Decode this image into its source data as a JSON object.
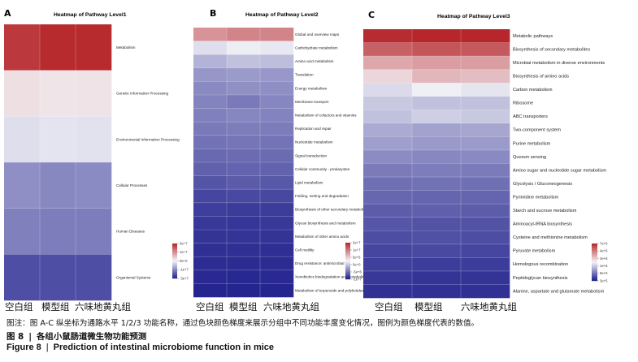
{
  "chart_data": [
    {
      "type": "heatmap",
      "panel": "A",
      "title": "Heatmap of Pathway Level1",
      "columns": [
        "空白组",
        "模型组",
        "六味地黄丸组"
      ],
      "rows": [
        "Metabolism",
        "Genetic Information Processing",
        "Environmental Information Processing",
        "Cellular Processes",
        "Human Diseases",
        "Organismal Systems"
      ],
      "values": [
        [
          27000000.0,
          29000000.0,
          29000000.0
        ],
        [
          3000000.0,
          2200000.0,
          2400000.0
        ],
        [
          -3000000.0,
          -2200000.0,
          -2500000.0
        ],
        [
          -14000000.0,
          -15000000.0,
          -14500000.0
        ],
        [
          -16000000.0,
          -16500000.0,
          -16500000.0
        ],
        [
          -23000000.0,
          -23000000.0,
          -23000000.0
        ]
      ],
      "legend": {
        "ticks": [
          "3e+7",
          "1e+7",
          "0e+0",
          "-1e+7",
          "-3e+7"
        ],
        "tick_values": [
          30000000.0,
          10000000.0,
          0,
          -10000000.0,
          -30000000.0
        ],
        "min": -30000000.0,
        "max": 30000000.0,
        "colors": [
          "#1b1b8a",
          "#f4f4f8",
          "#b52428"
        ]
      }
    },
    {
      "type": "heatmap",
      "panel": "B",
      "title": "Heatmap of Pathway Level2",
      "columns": [
        "空白组",
        "模型组",
        "六味地黄丸组"
      ],
      "rows": [
        "Global and overview maps",
        "Carbohydrate metabolism",
        "Amino acid metabolism",
        "Translation",
        "Energy metabolism",
        "Membrane transport",
        "Metabolism of cofactors and vitamins",
        "Replication and repair",
        "Nucleotide metabolism",
        "Signal transduction",
        "Cellular community - prokaryotes",
        "Lipid metabolism",
        "Folding, sorting and degradation",
        "Biosynthesis of other secondary metabolites",
        "Glycan biosynthesis and metabolism",
        "Metabolism of other amino acids",
        "Cell motility",
        "Drug resistance: antimicrobial",
        "Xenobiotics biodegradation and metabolism",
        "Metabolism of terpenoids and polyketides"
      ],
      "values": [
        [
          12000000.0,
          13000000.0,
          13000000.0
        ],
        [
          3500000.0,
          4500000.0,
          4200000.0
        ],
        [
          500000.0,
          1500000.0,
          1200000.0
        ],
        [
          -1500000.0,
          -1200000.0,
          -1400000.0
        ],
        [
          -2300000.0,
          -1900000.0,
          -2000000.0
        ],
        [
          -2800000.0,
          -3400000.0,
          -2600000.0
        ],
        [
          -3000000.0,
          -2600000.0,
          -2800000.0
        ],
        [
          -3400000.0,
          -3200000.0,
          -3300000.0
        ],
        [
          -4000000.0,
          -3800000.0,
          -3900000.0
        ],
        [
          -4600000.0,
          -4500000.0,
          -4500000.0
        ],
        [
          -5200000.0,
          -5000000.0,
          -5100000.0
        ],
        [
          -6000000.0,
          -5600000.0,
          -5800000.0
        ],
        [
          -7000000.0,
          -6800000.0,
          -6900000.0
        ],
        [
          -7600000.0,
          -7800000.0,
          -7700000.0
        ],
        [
          -8000000.0,
          -8100000.0,
          -8000000.0
        ],
        [
          -8300000.0,
          -8300000.0,
          -8300000.0
        ],
        [
          -8600000.0,
          -8600000.0,
          -8700000.0
        ],
        [
          -8800000.0,
          -8900000.0,
          -8900000.0
        ],
        [
          -9000000.0,
          -9100000.0,
          -9000000.0
        ],
        [
          -9300000.0,
          -9300000.0,
          -9300000.0
        ]
      ],
      "legend": {
        "ticks": [
          "2e+7",
          "1e+7",
          "5e+6",
          "0e+0",
          "-5e+6",
          "-1e+7"
        ],
        "tick_values": [
          20000000.0,
          10000000.0,
          5000000.0,
          0,
          -5000000.0,
          -10000000.0
        ],
        "min": -10000000.0,
        "max": 20000000.0,
        "colors": [
          "#1b1b8a",
          "#f4f4f8",
          "#b52428"
        ]
      }
    },
    {
      "type": "heatmap",
      "panel": "C",
      "title": "Heatmap of Pathway Level3",
      "columns": [
        "空白组",
        "模型组",
        "六味地黄丸组"
      ],
      "rows": [
        "Metabolic pathways",
        "Biosynthesis of secondary metabolites",
        "Microbial metabolism in diverse environments",
        "Biosynthesis of amino acids",
        "Carbon metabolism",
        "Ribosome",
        "ABC transporters",
        "Two-component system",
        "Purine metabolism",
        "Quorum sensing",
        "Amino sugar and nucleotide sugar metabolism",
        "Glycolysis / Gluconeogenesis",
        "Pyrimidine metabolism",
        "Starch and sucrose metabolism",
        "Aminoacyl-tRNA biosynthesis",
        "Cysteine and methionine metabolism",
        "Pyruvate metabolism",
        "Homologous recombination",
        "Peptidoglycan biosynthesis",
        "Alanine, aspartate and glutamate metabolism"
      ],
      "values": [
        [
          6600000.0,
          6900000.0,
          6900000.0
        ],
        [
          4400000.0,
          4800000.0,
          4700000.0
        ],
        [
          2600000.0,
          2800000.0,
          2800000.0
        ],
        [
          1800000.0,
          2300000.0,
          2200000.0
        ],
        [
          1200000.0,
          1400000.0,
          1300000.0
        ],
        [
          1050000.0,
          1000000.0,
          1000000.0
        ],
        [
          1000000.0,
          1100000.0,
          1050000.0
        ],
        [
          850000.0,
          800000.0,
          820000.0
        ],
        [
          780000.0,
          750000.0,
          760000.0
        ],
        [
          680000.0,
          660000.0,
          670000.0
        ],
        [
          600000.0,
          610000.0,
          600000.0
        ],
        [
          550000.0,
          560000.0,
          550000.0
        ],
        [
          520000.0,
          510000.0,
          510000.0
        ],
        [
          480000.0,
          490000.0,
          480000.0
        ],
        [
          460000.0,
          450000.0,
          450000.0
        ],
        [
          430000.0,
          440000.0,
          430000.0
        ],
        [
          410000.0,
          420000.0,
          410000.0
        ],
        [
          390000.0,
          380000.0,
          380000.0
        ],
        [
          370000.0,
          360000.0,
          360000.0
        ],
        [
          350000.0,
          350000.0,
          350000.0
        ]
      ],
      "legend": {
        "ticks": [
          "7e+6",
          "4e+6",
          "2e+6",
          "1e+6",
          "6e+5",
          "3e+5"
        ],
        "tick_values": [
          7000000.0,
          4000000.0,
          2000000.0,
          1000000.0,
          600000.0,
          300000.0
        ],
        "scale": "log",
        "min": 300000.0,
        "max": 7000000.0,
        "colors": [
          "#1b1b8a",
          "#f4f4f8",
          "#b52428"
        ]
      }
    }
  ],
  "caption": {
    "note": "图注：图 A-C 纵坐标为通路水平 1/2/3 功能名称，通过色块颜色梯度来展示分组中不同功能丰度变化情况，图例为颜色梯度代表的数值。",
    "figure_label_cn": "图 8",
    "figure_title_cn": "各组小鼠肠道微生物功能预测",
    "figure_label_en": "Figure 8",
    "figure_title_en": "Prediction of intestinal microbiome function in mice"
  }
}
